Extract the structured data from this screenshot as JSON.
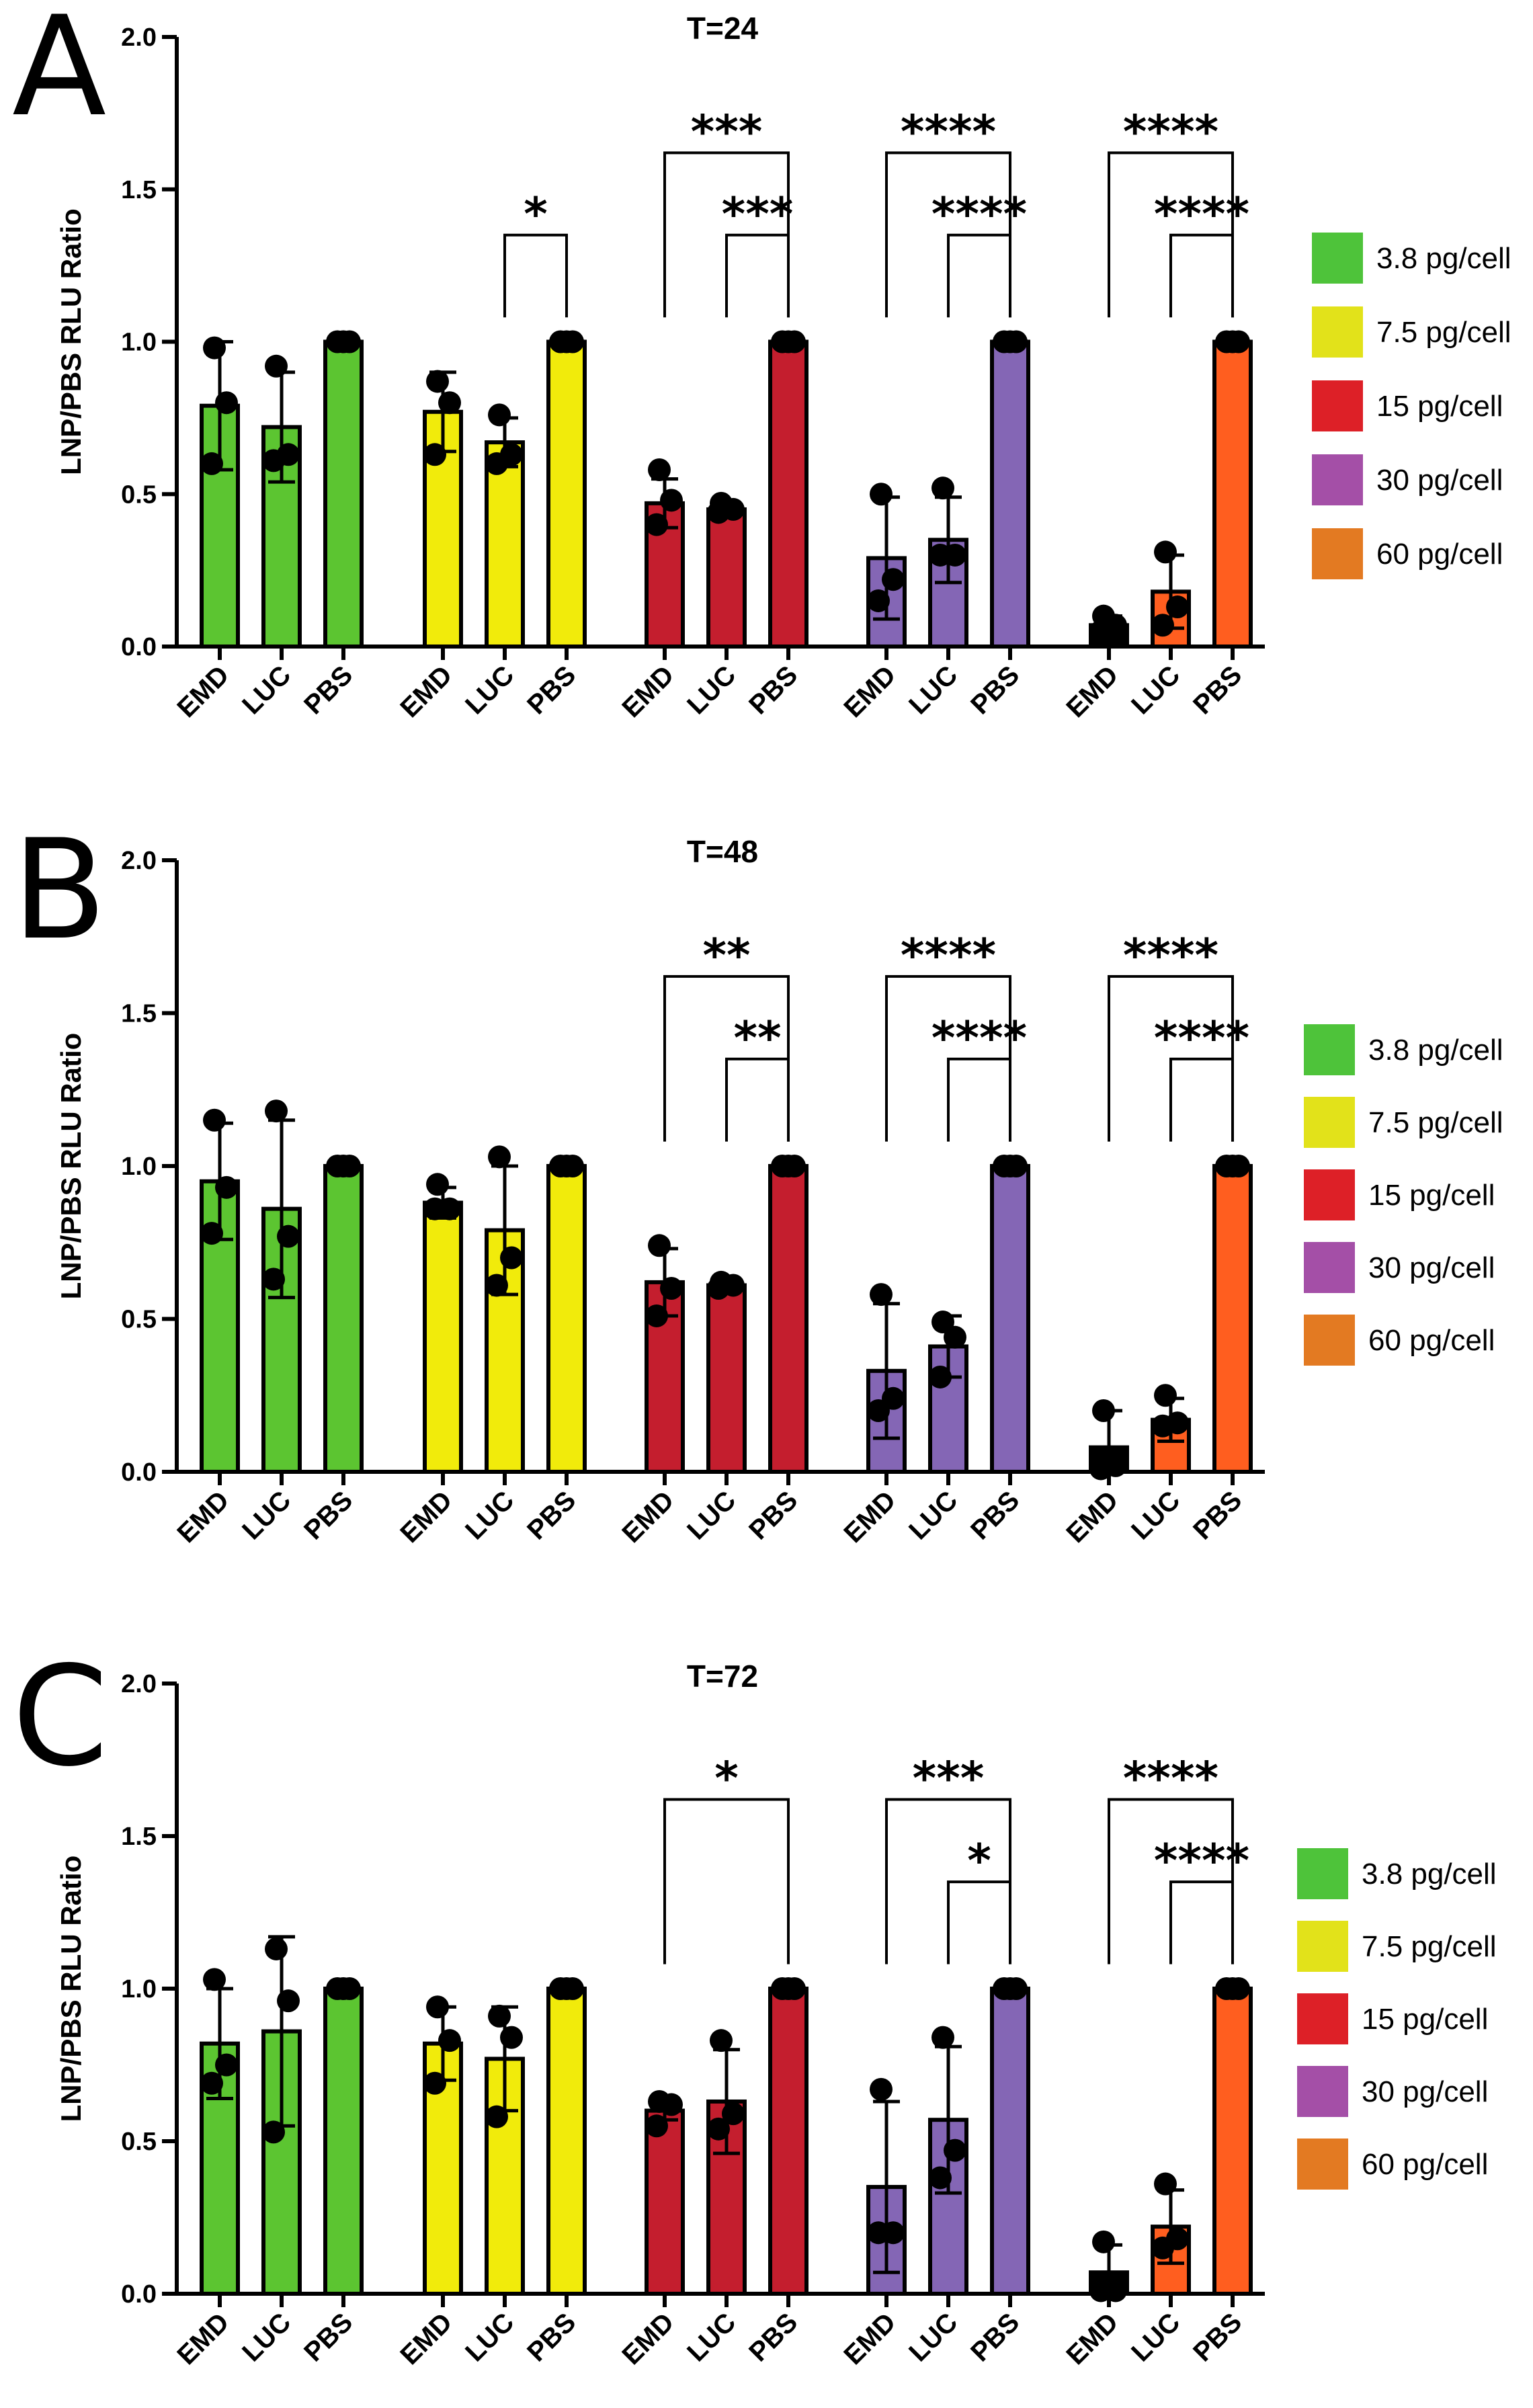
{
  "figure": {
    "y_axis_label": "LNP/PBS RLU Ratio",
    "y_ticks": [
      "0.0",
      "0.5",
      "1.0",
      "1.5",
      "2.0"
    ],
    "x_tick_labels": [
      "EMD",
      "LUC",
      "PBS"
    ]
  },
  "legend": [
    {
      "label": "3.8 pg/cell",
      "color": "#4ec33a"
    },
    {
      "label": "7.5 pg/cell",
      "color": "#e2e21a"
    },
    {
      "label": "15 pg/cell",
      "color": "#dd2027"
    },
    {
      "label": "30 pg/cell",
      "color": "#a44fa7"
    },
    {
      "label": "60 pg/cell",
      "color": "#e37a22"
    }
  ],
  "colors": {
    "green": "#5cc531",
    "yellow": "#f1eb0b",
    "red": "#c41e2e",
    "purple": "#8466b5",
    "orange": "#ff5e1f",
    "black": "#000000"
  },
  "chart_data": [
    {
      "panel": "A",
      "type": "bar",
      "title": "T=24",
      "ylabel": "LNP/PBS RLU Ratio",
      "ylim": [
        0,
        2.0
      ],
      "groups": [
        {
          "dose": "3.8 pg/cell",
          "categories": [
            "EMD",
            "LUC",
            "PBS"
          ],
          "values": [
            0.79,
            0.72,
            1.0
          ],
          "sd": [
            0.21,
            0.18,
            0.0
          ],
          "points": [
            [
              0.98,
              0.8,
              0.6
            ],
            [
              0.92,
              0.63,
              0.61
            ],
            [
              1.0,
              1.0,
              1.0
            ]
          ],
          "bar_colors": [
            "green",
            "green",
            "green"
          ]
        },
        {
          "dose": "7.5 pg/cell",
          "categories": [
            "EMD",
            "LUC",
            "PBS"
          ],
          "values": [
            0.77,
            0.67,
            1.0
          ],
          "sd": [
            0.13,
            0.08,
            0.0
          ],
          "points": [
            [
              0.87,
              0.8,
              0.63
            ],
            [
              0.76,
              0.63,
              0.6
            ],
            [
              1.0,
              1.0,
              1.0
            ]
          ],
          "bar_colors": [
            "yellow",
            "yellow",
            "yellow"
          ]
        },
        {
          "dose": "15 pg/cell",
          "categories": [
            "EMD",
            "LUC",
            "PBS"
          ],
          "values": [
            0.47,
            0.45,
            1.0
          ],
          "sd": [
            0.08,
            0.02,
            0.0
          ],
          "points": [
            [
              0.58,
              0.48,
              0.4
            ],
            [
              0.47,
              0.45,
              0.44
            ],
            [
              1.0,
              1.0,
              1.0
            ]
          ],
          "bar_colors": [
            "red",
            "red",
            "red"
          ]
        },
        {
          "dose": "30 pg/cell",
          "categories": [
            "EMD",
            "LUC",
            "PBS"
          ],
          "values": [
            0.29,
            0.35,
            1.0
          ],
          "sd": [
            0.2,
            0.14,
            0.0
          ],
          "points": [
            [
              0.5,
              0.22,
              0.15
            ],
            [
              0.52,
              0.3,
              0.3
            ],
            [
              1.0,
              1.0,
              1.0
            ]
          ],
          "bar_colors": [
            "purple",
            "purple",
            "purple"
          ]
        },
        {
          "dose": "60 pg/cell",
          "categories": [
            "EMD",
            "LUC",
            "PBS"
          ],
          "values": [
            0.07,
            0.18,
            1.0
          ],
          "sd": [
            0.03,
            0.12,
            0.0
          ],
          "points": [
            [
              0.1,
              0.07,
              0.05
            ],
            [
              0.31,
              0.13,
              0.07
            ],
            [
              1.0,
              1.0,
              1.0
            ]
          ],
          "bar_colors": [
            "black",
            "orange",
            "orange"
          ]
        }
      ],
      "significance": [
        {
          "group": 1,
          "from": "LUC",
          "to": "PBS",
          "label": "*",
          "level": 1.35
        },
        {
          "group": 2,
          "from": "EMD",
          "to": "PBS",
          "label": "***",
          "level": 1.62
        },
        {
          "group": 2,
          "from": "LUC",
          "to": "PBS",
          "label": "***",
          "level": 1.35
        },
        {
          "group": 3,
          "from": "EMD",
          "to": "PBS",
          "label": "****",
          "level": 1.62
        },
        {
          "group": 3,
          "from": "LUC",
          "to": "PBS",
          "label": "****",
          "level": 1.35
        },
        {
          "group": 4,
          "from": "EMD",
          "to": "PBS",
          "label": "****",
          "level": 1.62
        },
        {
          "group": 4,
          "from": "LUC",
          "to": "PBS",
          "label": "****",
          "level": 1.35
        }
      ]
    },
    {
      "panel": "B",
      "type": "bar",
      "title": "T=48",
      "ylabel": "LNP/PBS RLU Ratio",
      "ylim": [
        0,
        2.0
      ],
      "groups": [
        {
          "dose": "3.8 pg/cell",
          "categories": [
            "EMD",
            "LUC",
            "PBS"
          ],
          "values": [
            0.95,
            0.86,
            1.0
          ],
          "sd": [
            0.19,
            0.29,
            0.0
          ],
          "points": [
            [
              1.15,
              0.93,
              0.78
            ],
            [
              1.18,
              0.77,
              0.63
            ],
            [
              1.0,
              1.0,
              1.0
            ]
          ],
          "bar_colors": [
            "green",
            "green",
            "green"
          ]
        },
        {
          "dose": "7.5 pg/cell",
          "categories": [
            "EMD",
            "LUC",
            "PBS"
          ],
          "values": [
            0.88,
            0.79,
            1.0
          ],
          "sd": [
            0.05,
            0.21,
            0.0
          ],
          "points": [
            [
              0.94,
              0.86,
              0.86
            ],
            [
              1.03,
              0.7,
              0.61
            ],
            [
              1.0,
              1.0,
              1.0
            ]
          ],
          "bar_colors": [
            "yellow",
            "yellow",
            "yellow"
          ]
        },
        {
          "dose": "15 pg/cell",
          "categories": [
            "EMD",
            "LUC",
            "PBS"
          ],
          "values": [
            0.62,
            0.61,
            1.0
          ],
          "sd": [
            0.11,
            0.01,
            0.0
          ],
          "points": [
            [
              0.74,
              0.6,
              0.51
            ],
            [
              0.62,
              0.61,
              0.6
            ],
            [
              1.0,
              1.0,
              1.0
            ]
          ],
          "bar_colors": [
            "red",
            "red",
            "red"
          ]
        },
        {
          "dose": "30 pg/cell",
          "categories": [
            "EMD",
            "LUC",
            "PBS"
          ],
          "values": [
            0.33,
            0.41,
            1.0
          ],
          "sd": [
            0.22,
            0.1,
            0.0
          ],
          "points": [
            [
              0.58,
              0.24,
              0.2
            ],
            [
              0.49,
              0.44,
              0.31
            ],
            [
              1.0,
              1.0,
              1.0
            ]
          ],
          "bar_colors": [
            "purple",
            "purple",
            "purple"
          ]
        },
        {
          "dose": "60 pg/cell",
          "categories": [
            "EMD",
            "LUC",
            "PBS"
          ],
          "values": [
            0.08,
            0.17,
            1.0
          ],
          "sd": [
            0.12,
            0.07,
            0.0
          ],
          "points": [
            [
              0.2,
              0.02,
              0.01
            ],
            [
              0.25,
              0.16,
              0.15
            ],
            [
              1.0,
              1.0,
              1.0
            ]
          ],
          "bar_colors": [
            "black",
            "orange",
            "orange"
          ]
        }
      ],
      "significance": [
        {
          "group": 2,
          "from": "EMD",
          "to": "PBS",
          "label": "**",
          "level": 1.62
        },
        {
          "group": 2,
          "from": "LUC",
          "to": "PBS",
          "label": "**",
          "level": 1.35
        },
        {
          "group": 3,
          "from": "EMD",
          "to": "PBS",
          "label": "****",
          "level": 1.62
        },
        {
          "group": 3,
          "from": "LUC",
          "to": "PBS",
          "label": "****",
          "level": 1.35
        },
        {
          "group": 4,
          "from": "EMD",
          "to": "PBS",
          "label": "****",
          "level": 1.62
        },
        {
          "group": 4,
          "from": "LUC",
          "to": "PBS",
          "label": "****",
          "level": 1.35
        }
      ]
    },
    {
      "panel": "C",
      "type": "bar",
      "title": "T=72",
      "ylabel": "LNP/PBS RLU Ratio",
      "ylim": [
        0,
        2.0
      ],
      "groups": [
        {
          "dose": "3.8 pg/cell",
          "categories": [
            "EMD",
            "LUC",
            "PBS"
          ],
          "values": [
            0.82,
            0.86,
            1.0
          ],
          "sd": [
            0.18,
            0.31,
            0.0
          ],
          "points": [
            [
              1.03,
              0.75,
              0.69
            ],
            [
              1.13,
              0.96,
              0.53
            ],
            [
              1.0,
              1.0,
              1.0
            ]
          ],
          "bar_colors": [
            "green",
            "green",
            "green"
          ]
        },
        {
          "dose": "7.5 pg/cell",
          "categories": [
            "EMD",
            "LUC",
            "PBS"
          ],
          "values": [
            0.82,
            0.77,
            1.0
          ],
          "sd": [
            0.12,
            0.17,
            0.0
          ],
          "points": [
            [
              0.94,
              0.83,
              0.69
            ],
            [
              0.91,
              0.84,
              0.58
            ],
            [
              1.0,
              1.0,
              1.0
            ]
          ],
          "bar_colors": [
            "yellow",
            "yellow",
            "yellow"
          ]
        },
        {
          "dose": "15 pg/cell",
          "categories": [
            "EMD",
            "LUC",
            "PBS"
          ],
          "values": [
            0.6,
            0.63,
            1.0
          ],
          "sd": [
            0.03,
            0.17,
            0.0
          ],
          "points": [
            [
              0.63,
              0.62,
              0.55
            ],
            [
              0.83,
              0.59,
              0.54
            ],
            [
              1.0,
              1.0,
              1.0
            ]
          ],
          "bar_colors": [
            "red",
            "red",
            "red"
          ]
        },
        {
          "dose": "30 pg/cell",
          "categories": [
            "EMD",
            "LUC",
            "PBS"
          ],
          "values": [
            0.35,
            0.57,
            1.0
          ],
          "sd": [
            0.28,
            0.24,
            0.0
          ],
          "points": [
            [
              0.67,
              0.2,
              0.2
            ],
            [
              0.84,
              0.47,
              0.38
            ],
            [
              1.0,
              1.0,
              1.0
            ]
          ],
          "bar_colors": [
            "purple",
            "purple",
            "purple"
          ]
        },
        {
          "dose": "60 pg/cell",
          "categories": [
            "EMD",
            "LUC",
            "PBS"
          ],
          "values": [
            0.07,
            0.22,
            1.0
          ],
          "sd": [
            0.09,
            0.12,
            0.0
          ],
          "points": [
            [
              0.17,
              0.01,
              0.01
            ],
            [
              0.36,
              0.18,
              0.15
            ],
            [
              1.0,
              1.0,
              1.0
            ]
          ],
          "bar_colors": [
            "black",
            "orange",
            "orange"
          ]
        }
      ],
      "significance": [
        {
          "group": 2,
          "from": "EMD",
          "to": "PBS",
          "label": "*",
          "level": 1.62
        },
        {
          "group": 3,
          "from": "EMD",
          "to": "PBS",
          "label": "***",
          "level": 1.62
        },
        {
          "group": 3,
          "from": "LUC",
          "to": "PBS",
          "label": "*",
          "level": 1.35
        },
        {
          "group": 4,
          "from": "EMD",
          "to": "PBS",
          "label": "****",
          "level": 1.62
        },
        {
          "group": 4,
          "from": "LUC",
          "to": "PBS",
          "label": "****",
          "level": 1.35
        }
      ]
    }
  ]
}
